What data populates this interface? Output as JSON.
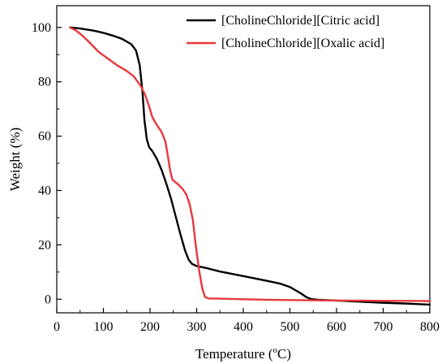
{
  "chart_data": {
    "type": "line",
    "title": "",
    "xlabel": "Temperature (°C)",
    "xlabel_parts": {
      "before": "Temperature (",
      "sup": "o",
      "after": "C)"
    },
    "ylabel": "Weight (%)",
    "xlim": [
      0,
      800
    ],
    "ylim": [
      -5,
      108
    ],
    "xticks": [
      "0",
      "100",
      "200",
      "300",
      "400",
      "500",
      "600",
      "700",
      "800"
    ],
    "yticks": [
      "0",
      "20",
      "40",
      "60",
      "80",
      "100"
    ],
    "grid": false,
    "legend_position": "top-right",
    "series": [
      {
        "name": "[CholineChloride][Citric acid]",
        "color": "#000000",
        "points": [
          [
            30,
            100
          ],
          [
            50,
            99.6
          ],
          [
            80,
            98.8
          ],
          [
            100,
            98
          ],
          [
            120,
            97
          ],
          [
            140,
            95.8
          ],
          [
            160,
            93.8
          ],
          [
            170,
            91.5
          ],
          [
            178,
            86
          ],
          [
            184,
            76
          ],
          [
            188,
            66
          ],
          [
            193,
            59
          ],
          [
            198,
            56
          ],
          [
            205,
            54.5
          ],
          [
            215,
            51.5
          ],
          [
            225,
            47.5
          ],
          [
            235,
            42.5
          ],
          [
            245,
            37
          ],
          [
            255,
            30.5
          ],
          [
            265,
            24
          ],
          [
            275,
            18
          ],
          [
            283,
            14.5
          ],
          [
            290,
            13
          ],
          [
            300,
            12.2
          ],
          [
            320,
            11.5
          ],
          [
            350,
            10.2
          ],
          [
            400,
            8.5
          ],
          [
            450,
            6.8
          ],
          [
            480,
            5.7
          ],
          [
            500,
            4.5
          ],
          [
            515,
            3
          ],
          [
            525,
            2
          ],
          [
            535,
            0.8
          ],
          [
            545,
            0.1
          ],
          [
            560,
            -0.2
          ],
          [
            600,
            -0.5
          ],
          [
            650,
            -0.9
          ],
          [
            700,
            -1.3
          ],
          [
            750,
            -1.6
          ],
          [
            800,
            -2
          ]
        ]
      },
      {
        "name": "[CholineChloride][Oxalic acid]",
        "color": "#e8383b",
        "points": [
          [
            28,
            100
          ],
          [
            40,
            99
          ],
          [
            55,
            97
          ],
          [
            70,
            94.5
          ],
          [
            90,
            91
          ],
          [
            110,
            88.5
          ],
          [
            130,
            86
          ],
          [
            150,
            84
          ],
          [
            165,
            82
          ],
          [
            180,
            78.5
          ],
          [
            190,
            75
          ],
          [
            198,
            71
          ],
          [
            205,
            67
          ],
          [
            215,
            64
          ],
          [
            225,
            61.5
          ],
          [
            233,
            58
          ],
          [
            238,
            53
          ],
          [
            243,
            47.5
          ],
          [
            248,
            44
          ],
          [
            255,
            43
          ],
          [
            262,
            42
          ],
          [
            270,
            40.5
          ],
          [
            278,
            38.5
          ],
          [
            285,
            35
          ],
          [
            292,
            29
          ],
          [
            298,
            20
          ],
          [
            305,
            11
          ],
          [
            312,
            4
          ],
          [
            318,
            0.8
          ],
          [
            325,
            0.3
          ],
          [
            350,
            0.2
          ],
          [
            400,
            0
          ],
          [
            450,
            -0.2
          ],
          [
            500,
            -0.3
          ],
          [
            550,
            -0.4
          ],
          [
            600,
            -0.5
          ],
          [
            650,
            -0.5
          ],
          [
            700,
            -0.6
          ],
          [
            750,
            -0.6
          ],
          [
            800,
            -0.7
          ]
        ]
      }
    ]
  }
}
